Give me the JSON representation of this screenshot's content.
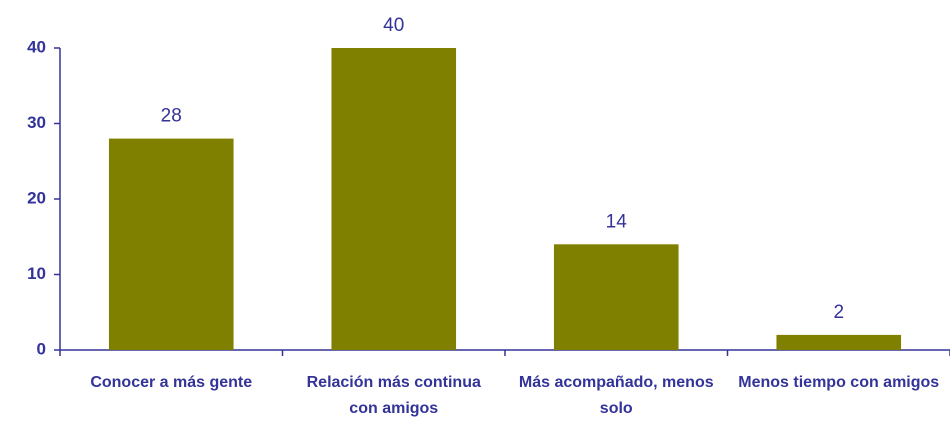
{
  "chart_data": {
    "type": "bar",
    "categories": [
      "Conocer a más gente",
      "Relación más continua con amigos",
      "Más acompañado, menos solo",
      "Menos tiempo con amigos"
    ],
    "values": [
      28,
      40,
      14,
      2
    ],
    "color": "#808000",
    "ylim": [
      0,
      40
    ],
    "yticks": [
      0,
      10,
      20,
      30,
      40
    ],
    "grid": false
  }
}
